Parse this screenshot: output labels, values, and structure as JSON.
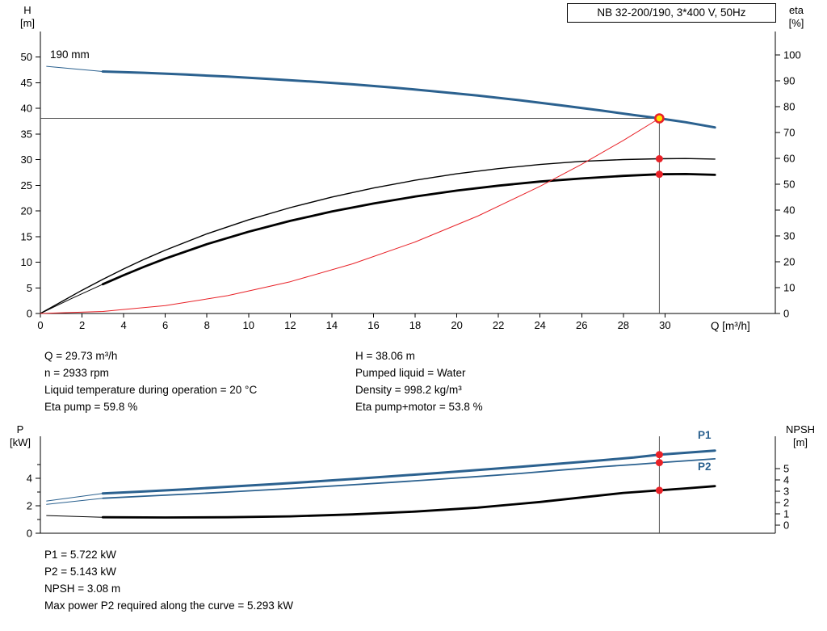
{
  "colors": {
    "curve_blue": "#2b618f",
    "marker_red": "#e82127",
    "duty_point_fill": "#ffe400",
    "axis_black": "#000000"
  },
  "title_box": {
    "label": "NB 32-200/190, 3*400 V, 50Hz"
  },
  "top_chart": {
    "left_axis_title": [
      "H",
      "[m]"
    ],
    "right_axis_title": [
      "eta",
      "[%]"
    ],
    "x_axis_title": "Q [m³/h]",
    "impeller_label": "190 mm"
  },
  "bottom_chart": {
    "left_axis_title": [
      "P",
      "[kW]"
    ],
    "right_axis_title": [
      "NPSH",
      "[m]"
    ],
    "p1_label": "P1",
    "p2_label": "P2"
  },
  "duty_info": {
    "left": [
      "Q = 29.73 m³/h",
      "n = 2933 rpm",
      "Liquid temperature during operation = 20 °C",
      "Eta pump = 59.8 %"
    ],
    "right": [
      "H = 38.06 m",
      "Pumped liquid = Water",
      "Density = 998.2 kg/m³",
      "Eta pump+motor = 53.8 %"
    ]
  },
  "power_info": [
    "P1 = 5.722 kW",
    "P2 = 5.143 kW",
    "NPSH = 3.08 m",
    "Max power P2 required along the curve = 5.293 kW"
  ],
  "chart_data": [
    {
      "id": "qh",
      "type": "line",
      "title": "NB 32-200/190, 3*400 V, 50Hz",
      "xlabel": "Q [m³/h]",
      "ylabel_left": "H [m]",
      "ylabel_right": "eta [%]",
      "xlim": [
        0,
        35.3
      ],
      "ylim_left": [
        0,
        55
      ],
      "ylim_right": [
        0,
        109
      ],
      "xticks": [
        0,
        2,
        4,
        6,
        8,
        10,
        12,
        14,
        16,
        18,
        20,
        22,
        24,
        26,
        28,
        30
      ],
      "yticks_left": [
        0,
        5,
        10,
        15,
        20,
        25,
        30,
        35,
        40,
        45,
        50
      ],
      "yticks_right": [
        0,
        10,
        20,
        30,
        40,
        50,
        60,
        70,
        80,
        90,
        100
      ],
      "crosshair": {
        "x": 29.73,
        "y_left": 38.06
      },
      "series": [
        {
          "name": "head-190mm-lead",
          "axis": "left",
          "color": "#2b618f",
          "width": 1,
          "x": [
            0.3,
            3
          ],
          "y": [
            48.2,
            47.2
          ]
        },
        {
          "name": "head-190mm",
          "axis": "left",
          "color": "#2b618f",
          "width": 3,
          "x": [
            3,
            5,
            7,
            9,
            11,
            13,
            15,
            17,
            19,
            21,
            23,
            25,
            27,
            28.5,
            29.73,
            31,
            32.4
          ],
          "y": [
            47.2,
            46.95,
            46.6,
            46.2,
            45.75,
            45.25,
            44.7,
            44.05,
            43.3,
            42.5,
            41.6,
            40.6,
            39.55,
            38.7,
            38.06,
            37.3,
            36.3
          ]
        },
        {
          "name": "eta-pump",
          "axis": "right",
          "color": "#000000",
          "width": 1.4,
          "x": [
            0,
            1,
            2,
            3,
            4,
            5,
            6,
            8,
            10,
            12,
            14,
            16,
            18,
            20,
            22,
            24,
            26,
            28,
            29.73,
            31,
            32.4
          ],
          "y": [
            0,
            4.5,
            9,
            13.2,
            17.2,
            21,
            24.5,
            30.8,
            36.2,
            40.9,
            45,
            48.5,
            51.5,
            54,
            56,
            57.6,
            58.8,
            59.5,
            59.8,
            59.9,
            59.7
          ]
        },
        {
          "name": "eta-pump-motor-lead",
          "axis": "right",
          "color": "#000000",
          "width": 1,
          "x": [
            0,
            1.5,
            3
          ],
          "y": [
            0,
            5.8,
            11.3
          ]
        },
        {
          "name": "eta-pump-motor",
          "axis": "right",
          "color": "#000000",
          "width": 2.8,
          "x": [
            3,
            4,
            5,
            6,
            8,
            10,
            12,
            14,
            16,
            18,
            20,
            22,
            24,
            26,
            28,
            29.73,
            31,
            32.4
          ],
          "y": [
            11.3,
            14.8,
            18.1,
            21.2,
            26.8,
            31.6,
            35.8,
            39.4,
            42.5,
            45.2,
            47.5,
            49.4,
            51,
            52.2,
            53.2,
            53.8,
            53.9,
            53.6
          ]
        },
        {
          "name": "system-curve",
          "axis": "left",
          "color": "#e82127",
          "width": 1,
          "x": [
            0,
            3,
            6,
            9,
            12,
            15,
            18,
            21,
            24,
            26,
            28,
            29.73
          ],
          "y": [
            0,
            0.39,
            1.55,
            3.49,
            6.2,
            9.69,
            13.95,
            18.99,
            24.8,
            29.11,
            33.76,
            38.06
          ]
        }
      ],
      "markers": [
        {
          "name": "eta-pump-point",
          "axis": "right",
          "x": 29.73,
          "y": 59.8,
          "style": "red-dot"
        },
        {
          "name": "eta-pump-motor-point",
          "axis": "right",
          "x": 29.73,
          "y": 53.8,
          "style": "red-dot"
        },
        {
          "name": "duty-point",
          "axis": "left",
          "x": 29.73,
          "y": 38.06,
          "style": "duty"
        }
      ]
    },
    {
      "id": "p_npsh",
      "type": "line",
      "title": "Power and NPSH curves",
      "xlabel": "Q [m³/h]",
      "ylabel_left": "P [kW]",
      "ylabel_right": "NPSH [m]",
      "xlim": [
        0,
        35.3
      ],
      "ylim_left": [
        0,
        7.06
      ],
      "ylim_right": [
        -0.714,
        7.857
      ],
      "xticks": [],
      "yticks_left": [
        0,
        2,
        4
      ],
      "minor_left": [
        1,
        3,
        5
      ],
      "yticks_right": [
        0,
        1,
        2,
        3,
        4,
        5
      ],
      "crosshair": {
        "x": 29.73
      },
      "series": [
        {
          "name": "p1-lead",
          "axis": "left",
          "color": "#2b618f",
          "width": 1,
          "x": [
            0.3,
            3
          ],
          "y": [
            2.35,
            2.9
          ]
        },
        {
          "name": "p1",
          "axis": "left",
          "color": "#2b618f",
          "width": 3,
          "x": [
            3,
            5,
            7,
            9,
            11,
            13,
            15,
            17,
            19,
            21,
            23,
            25,
            27,
            28.5,
            29.73,
            31,
            32.4
          ],
          "y": [
            2.9,
            3.05,
            3.2,
            3.38,
            3.56,
            3.75,
            3.95,
            4.16,
            4.38,
            4.6,
            4.83,
            5.07,
            5.32,
            5.52,
            5.722,
            5.86,
            6.02
          ]
        },
        {
          "name": "p2-lead",
          "axis": "left",
          "color": "#2b618f",
          "width": 1,
          "x": [
            0.3,
            3
          ],
          "y": [
            2.1,
            2.55
          ]
        },
        {
          "name": "p2",
          "axis": "left",
          "color": "#2b618f",
          "width": 1.8,
          "x": [
            3,
            5,
            7,
            9,
            11,
            13,
            15,
            17,
            19,
            21,
            23,
            25,
            27,
            28.5,
            29.73,
            31,
            32.4
          ],
          "y": [
            2.55,
            2.7,
            2.85,
            3.0,
            3.17,
            3.34,
            3.53,
            3.72,
            3.92,
            4.13,
            4.35,
            4.6,
            4.85,
            5.0,
            5.143,
            5.27,
            5.42
          ]
        },
        {
          "name": "npsh-lead",
          "axis": "right",
          "color": "#000000",
          "width": 1,
          "x": [
            0.3,
            3
          ],
          "y": [
            0.85,
            0.7
          ]
        },
        {
          "name": "npsh",
          "axis": "right",
          "color": "#000000",
          "width": 2.8,
          "x": [
            3,
            6,
            9,
            12,
            15,
            18,
            21,
            24,
            26,
            28,
            29.73,
            31,
            32.4
          ],
          "y": [
            0.7,
            0.68,
            0.7,
            0.78,
            0.95,
            1.2,
            1.55,
            2.05,
            2.45,
            2.85,
            3.08,
            3.25,
            3.45
          ]
        }
      ],
      "markers": [
        {
          "name": "p1-point",
          "axis": "left",
          "x": 29.73,
          "y": 5.722,
          "style": "red-dot"
        },
        {
          "name": "p2-point",
          "axis": "left",
          "x": 29.73,
          "y": 5.143,
          "style": "red-dot"
        },
        {
          "name": "npsh-point",
          "axis": "right",
          "x": 29.73,
          "y": 3.08,
          "style": "red-dot"
        }
      ]
    }
  ]
}
